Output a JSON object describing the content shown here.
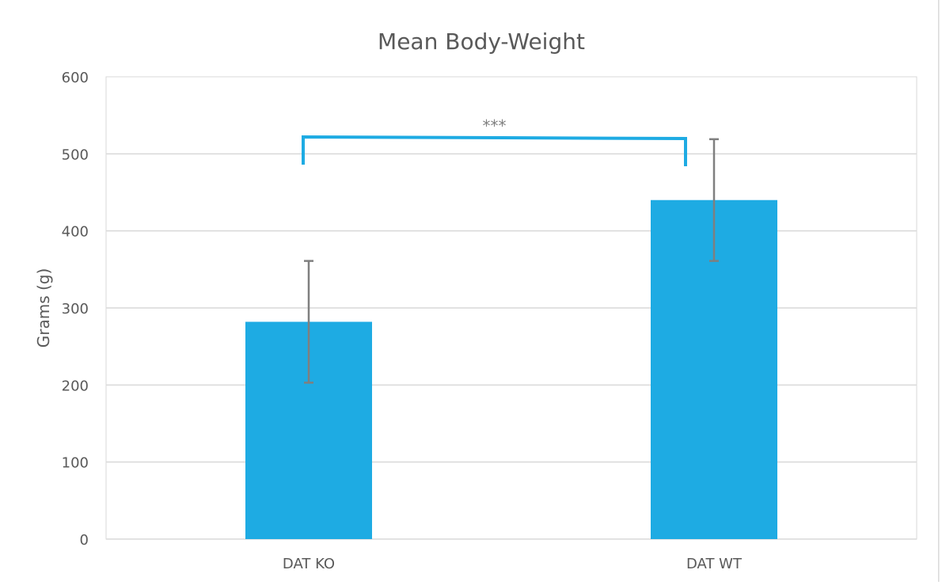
{
  "chart_data": {
    "type": "bar",
    "title": "Mean Body-Weight",
    "xlabel": "",
    "ylabel": "Grams (g)",
    "categories": [
      "DAT KO",
      "DAT WT"
    ],
    "values": [
      282,
      440
    ],
    "error": [
      79,
      79
    ],
    "ylim": [
      0,
      600
    ],
    "yticks": [
      0,
      100,
      200,
      300,
      400,
      500,
      600
    ],
    "grid": true,
    "legend": "none",
    "bar_color": "#1eabe3",
    "bracket_color": "#1eabe3",
    "errorbar_color": "#7f7f7f",
    "annotations": [
      {
        "text": "***",
        "between": [
          "DAT KO",
          "DAT WT"
        ]
      }
    ]
  }
}
